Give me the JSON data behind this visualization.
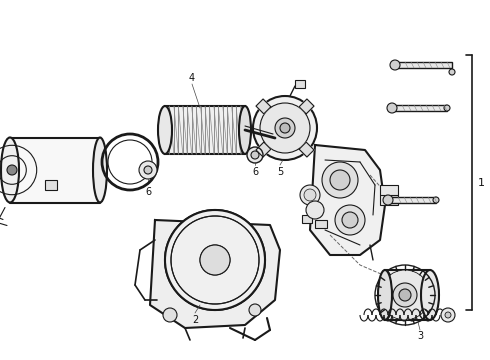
{
  "bg_color": "#ffffff",
  "line_color": "#1a1a1a",
  "figsize": [
    4.9,
    3.6
  ],
  "dpi": 100,
  "label_fs": 7,
  "label_color": "#111111"
}
